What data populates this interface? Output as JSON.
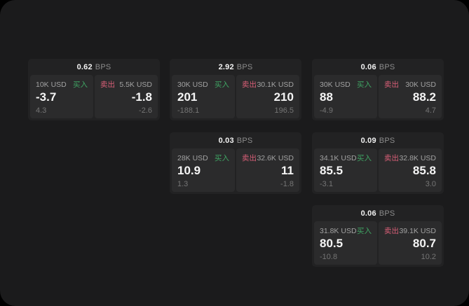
{
  "colors": {
    "backdrop": "#000000",
    "screen_bg": "#1b1b1c",
    "card_bg": "#222223",
    "panel_bg": "#2b2b2c",
    "text_primary": "#f5f5f5",
    "text_secondary": "#a2a2a2",
    "text_dim": "#757575",
    "buy_green": "#3fa463",
    "sell_red": "#d95f77"
  },
  "labels": {
    "bps_unit": "BPS",
    "buy": "买入",
    "sell": "卖出"
  },
  "cards": [
    {
      "bps": "0.62",
      "buy": {
        "amount": "10K USD",
        "value": "-3.7",
        "sub": "4.3"
      },
      "sell": {
        "amount": "5.5K USD",
        "value": "-1.8",
        "sub": "-2.6"
      }
    },
    {
      "bps": "2.92",
      "buy": {
        "amount": "30K USD",
        "value": "201",
        "sub": "-188.1"
      },
      "sell": {
        "amount": "30.1K USD",
        "value": "210",
        "sub": "196.5"
      }
    },
    {
      "bps": "0.06",
      "buy": {
        "amount": "30K USD",
        "value": "88",
        "sub": "-4.9"
      },
      "sell": {
        "amount": "30K USD",
        "value": "88.2",
        "sub": "4.7"
      }
    },
    {
      "bps": "0.03",
      "buy": {
        "amount": "28K USD",
        "value": "10.9",
        "sub": "1.3"
      },
      "sell": {
        "amount": "32.6K USD",
        "value": "11",
        "sub": "-1.8"
      }
    },
    {
      "bps": "0.09",
      "buy": {
        "amount": "34.1K USD",
        "value": "85.5",
        "sub": "-3.1"
      },
      "sell": {
        "amount": "32.8K USD",
        "value": "85.8",
        "sub": "3.0"
      }
    },
    {
      "bps": "0.06",
      "buy": {
        "amount": "31.8K USD",
        "value": "80.5",
        "sub": "-10.8"
      },
      "sell": {
        "amount": "39.1K USD",
        "value": "80.7",
        "sub": "10.2"
      }
    }
  ]
}
